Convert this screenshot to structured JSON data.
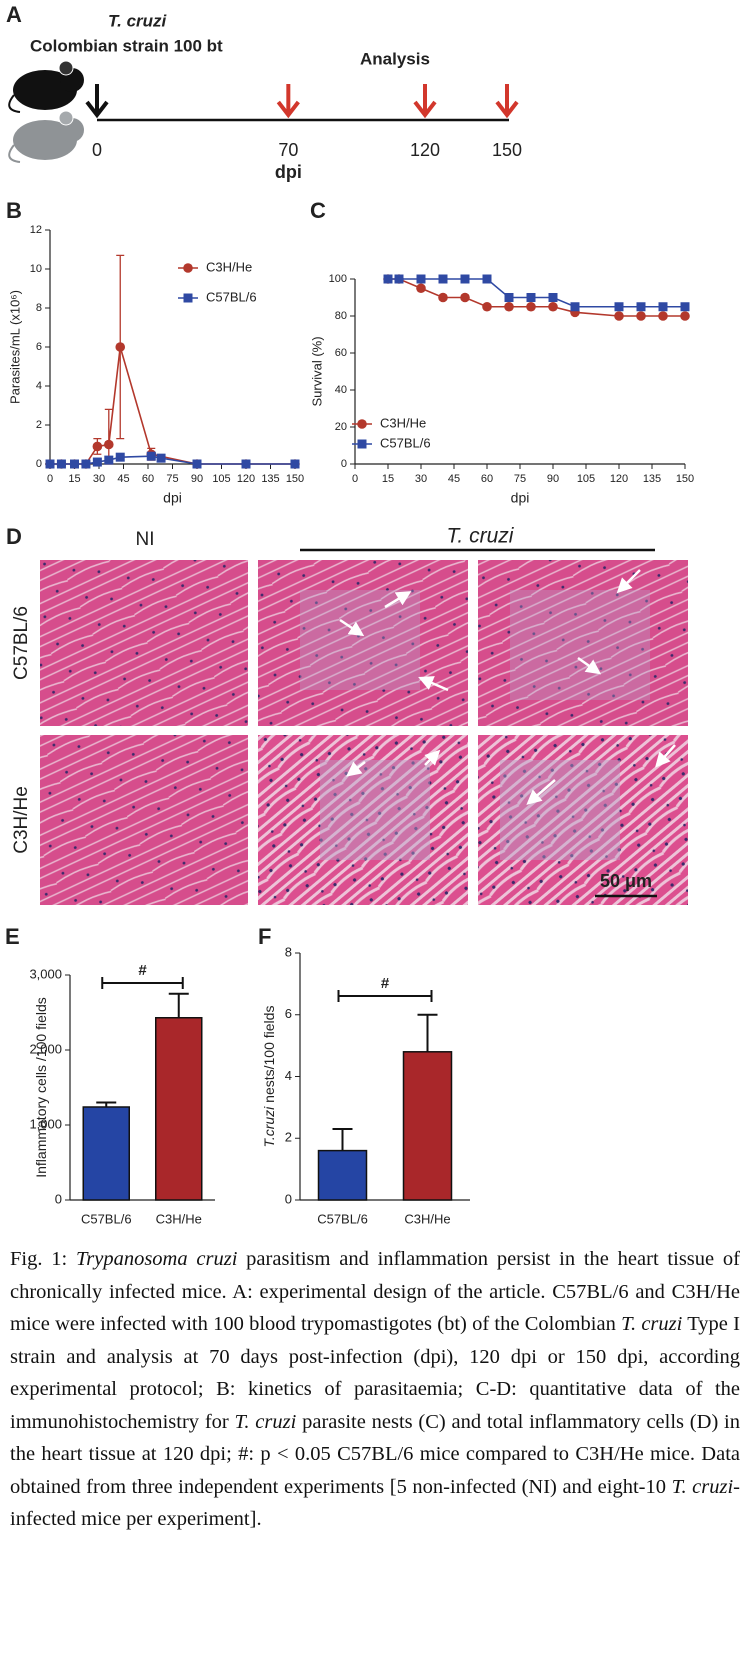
{
  "panel_a": {
    "letter": "A",
    "organism": "T. cruzi",
    "strain": "Colombian strain 100 bt",
    "analysis": "Analysis",
    "timepoints": [
      0,
      70,
      120,
      150
    ],
    "unit": "dpi"
  },
  "chart_data": [
    {
      "type": "line",
      "letter": "B",
      "xlabel": "dpi",
      "ylabel": "Parasites/mL (x10⁶)",
      "xlim": [
        0,
        150
      ],
      "xticks": [
        0,
        15,
        30,
        45,
        60,
        75,
        90,
        105,
        120,
        135,
        150
      ],
      "ylim": [
        0,
        12
      ],
      "yticks": [
        0,
        2,
        4,
        6,
        8,
        10,
        12
      ],
      "legend": "upper right",
      "series": [
        {
          "name": "C3H/He",
          "color": "#b3382c",
          "marker": "circle",
          "x": [
            0,
            7,
            15,
            22,
            29,
            36,
            43,
            62,
            90,
            120,
            150
          ],
          "values": [
            0,
            0,
            0,
            0,
            0.9,
            1.0,
            6.0,
            0.5,
            0,
            0,
            0
          ],
          "errors": [
            0,
            0,
            0,
            0,
            0.4,
            1.8,
            4.7,
            0.3,
            0,
            0,
            0
          ]
        },
        {
          "name": "C57BL/6",
          "color": "#2f49a3",
          "marker": "square",
          "x": [
            0,
            7,
            15,
            22,
            29,
            36,
            43,
            62,
            68,
            90,
            120,
            150
          ],
          "values": [
            0,
            0,
            0,
            0,
            0.1,
            0.2,
            0.35,
            0.4,
            0.3,
            0,
            0,
            0
          ]
        }
      ]
    },
    {
      "type": "line",
      "letter": "C",
      "xlabel": "dpi",
      "ylabel": "Survival (%)",
      "xlim": [
        0,
        150
      ],
      "xticks": [
        0,
        15,
        30,
        45,
        60,
        75,
        90,
        105,
        120,
        135,
        150
      ],
      "ylim": [
        0,
        100
      ],
      "yticks": [
        0,
        20,
        40,
        60,
        80,
        100
      ],
      "legend": "lower left",
      "series": [
        {
          "name": "C3H/He",
          "color": "#b3382c",
          "marker": "circle",
          "x": [
            15,
            20,
            30,
            40,
            50,
            60,
            70,
            80,
            90,
            100,
            120,
            130,
            140,
            150
          ],
          "values": [
            100,
            100,
            95,
            90,
            90,
            85,
            85,
            85,
            85,
            82,
            80,
            80,
            80,
            80
          ]
        },
        {
          "name": "C57BL/6",
          "color": "#2f49a3",
          "marker": "square",
          "x": [
            15,
            20,
            30,
            40,
            50,
            60,
            70,
            80,
            90,
            100,
            120,
            130,
            140,
            150
          ],
          "values": [
            100,
            100,
            100,
            100,
            100,
            100,
            90,
            90,
            90,
            85,
            85,
            85,
            85,
            85
          ]
        }
      ]
    },
    {
      "type": "bar",
      "letter": "E",
      "ylabel": [
        "Inflammatory cells /100 fields"
      ],
      "annotation": "#",
      "categories": [
        "C57BL/6",
        "C3H/He"
      ],
      "values": [
        1240,
        2430
      ],
      "errors": [
        60,
        320
      ],
      "colors": [
        "#2545a4",
        "#a9272a"
      ],
      "ylim": [
        0,
        3000
      ],
      "yticks": [
        0,
        {
          "value": 1000,
          "label": "1,000"
        },
        {
          "value": 2000,
          "label": "2,000"
        },
        {
          "value": 3000,
          "label": "3,000"
        }
      ]
    },
    {
      "type": "bar",
      "letter": "F",
      "ylabel": [
        "T.cruzi",
        " nests/100 fields"
      ],
      "annotation": "#",
      "categories": [
        "C57BL/6",
        "C3H/He"
      ],
      "values": [
        1.6,
        4.8
      ],
      "errors": [
        0.7,
        1.2
      ],
      "colors": [
        "#2545a4",
        "#a9272a"
      ],
      "ylim": [
        0,
        8
      ],
      "yticks": [
        0,
        2,
        4,
        6,
        8
      ]
    }
  ],
  "panel_d": {
    "letter": "D",
    "control": "NI",
    "infected": "T. cruzi",
    "rows": [
      "C57BL/6",
      "C3H/He"
    ],
    "scale": "50 μm"
  },
  "caption": [
    {
      "text": "Fig. 1: ",
      "italic": false
    },
    {
      "text": "Trypanosoma cruzi",
      "italic": true
    },
    {
      "text": " parasitism and inflammation persist in the heart tissue of chronically infected mice. A: experimental design of the article. C57BL/6 and C3H/He mice were infected with 100 blood trypomastigotes (bt) of the Colombian ",
      "italic": false
    },
    {
      "text": "T. cruzi",
      "italic": true
    },
    {
      "text": " Type I strain and analysis at 70 days post-infection (dpi), 120 dpi or 150 dpi, according experimental protocol; B: kinetics of parasitaemia; C-D: quantitative data of the immunohistochemistry for ",
      "italic": false
    },
    {
      "text": "T. cruzi",
      "italic": true
    },
    {
      "text": " parasite nests (C) and total inflammatory cells (D) in the heart tissue at 120 dpi; #: p < 0.05 C57BL/6 mice compared to C3H/He mice. Data obtained from three independent experiments [5 non-infected (NI) and eight-10 ",
      "italic": false
    },
    {
      "text": "T. cruzi",
      "italic": true
    },
    {
      "text": "-infected mice per experiment].",
      "italic": false
    }
  ]
}
